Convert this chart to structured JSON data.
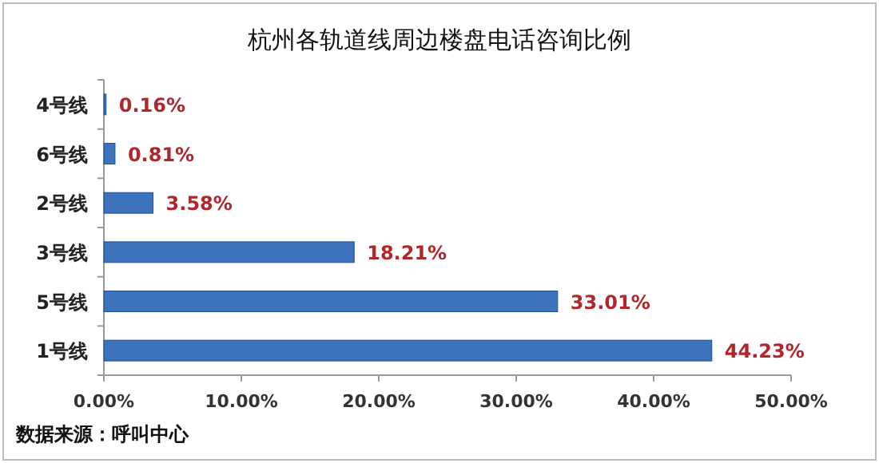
{
  "chart_data": {
    "type": "bar",
    "orientation": "horizontal",
    "title": "杭州各轨道线周边楼盘电话咨询比例",
    "categories": [
      "4号线",
      "6号线",
      "2号线",
      "3号线",
      "5号线",
      "1号线"
    ],
    "values": [
      0.16,
      0.81,
      3.58,
      18.21,
      33.01,
      44.23
    ],
    "value_labels": [
      "0.16%",
      "0.81%",
      "3.58%",
      "18.21%",
      "33.01%",
      "44.23%"
    ],
    "color": "#3d72bd",
    "xlim": [
      0,
      50
    ],
    "xticks": [
      {
        "value": 0,
        "label": "0.00%"
      },
      {
        "value": 10,
        "label": "10.00%"
      },
      {
        "value": 20,
        "label": "20.00%"
      },
      {
        "value": 30,
        "label": "30.00%"
      },
      {
        "value": 40,
        "label": "40.00%"
      },
      {
        "value": 50,
        "label": "50.00%"
      }
    ],
    "annotations": [
      "数据来源：呼叫中心"
    ]
  }
}
